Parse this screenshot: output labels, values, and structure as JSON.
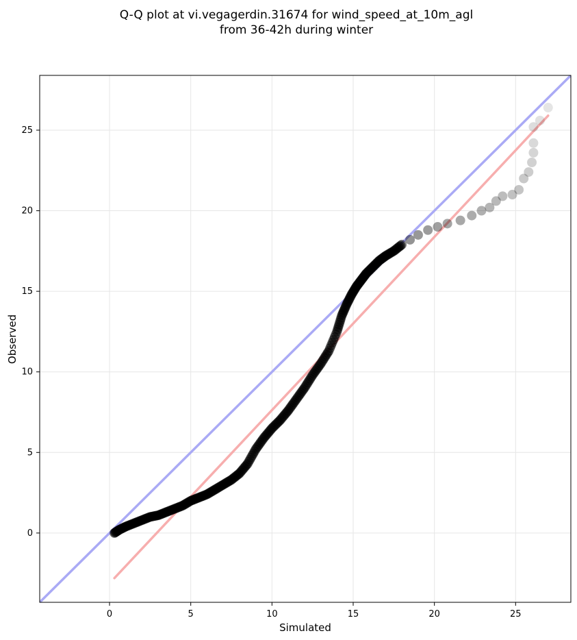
{
  "chart_data": {
    "type": "scatter",
    "title_line1": "Q-Q plot at vi.vegagerdin.31674 for wind_speed_at_10m_agl",
    "title_line2": "from 36-42h during winter",
    "xlabel": "Simulated",
    "ylabel": "Observed",
    "xlim": [
      -4.3,
      28.4
    ],
    "ylim": [
      -4.3,
      28.4
    ],
    "xticks": [
      0,
      5,
      10,
      15,
      20,
      25
    ],
    "yticks": [
      0,
      5,
      10,
      15,
      20,
      25
    ],
    "grid": true,
    "colors": {
      "points": "#000000",
      "identity_line": "#aaaaf5",
      "fit_line": "#f7aaaa",
      "grid": "#e6e6e6"
    },
    "identity_line": {
      "x": [
        -4.3,
        28.4
      ],
      "y": [
        -4.3,
        28.4
      ]
    },
    "fit_line": {
      "x": [
        0.3,
        27.0
      ],
      "y": [
        -2.8,
        25.9
      ]
    },
    "quantile_curve": {
      "x": [
        0.3,
        0.6,
        1.0,
        1.5,
        2.0,
        2.5,
        3.0,
        3.5,
        4.0,
        4.5,
        5.0,
        5.5,
        6.0,
        6.5,
        7.0,
        7.5,
        8.0,
        8.5,
        9.0,
        9.5,
        10.0,
        10.5,
        11.0,
        11.5,
        12.0,
        12.5,
        13.0,
        13.5,
        14.0,
        14.3,
        14.6,
        14.9,
        15.2,
        15.5,
        15.8,
        16.2,
        16.6,
        17.0,
        17.5,
        18.0
      ],
      "y": [
        0.0,
        0.2,
        0.4,
        0.6,
        0.8,
        1.0,
        1.1,
        1.3,
        1.5,
        1.7,
        2.0,
        2.2,
        2.4,
        2.7,
        3.0,
        3.3,
        3.7,
        4.3,
        5.2,
        5.9,
        6.5,
        7.0,
        7.6,
        8.3,
        9.0,
        9.8,
        10.5,
        11.3,
        12.5,
        13.5,
        14.2,
        14.8,
        15.3,
        15.7,
        16.1,
        16.5,
        16.9,
        17.2,
        17.5,
        17.9
      ]
    },
    "tail_points": [
      {
        "x": 18.5,
        "y": 18.2
      },
      {
        "x": 19.0,
        "y": 18.5
      },
      {
        "x": 19.6,
        "y": 18.8
      },
      {
        "x": 20.2,
        "y": 19.0
      },
      {
        "x": 20.8,
        "y": 19.2
      },
      {
        "x": 21.6,
        "y": 19.4
      },
      {
        "x": 22.3,
        "y": 19.7
      },
      {
        "x": 22.9,
        "y": 20.0
      },
      {
        "x": 23.4,
        "y": 20.2
      },
      {
        "x": 23.8,
        "y": 20.6
      },
      {
        "x": 24.2,
        "y": 20.9
      },
      {
        "x": 24.8,
        "y": 21.0
      },
      {
        "x": 25.2,
        "y": 21.3
      },
      {
        "x": 25.5,
        "y": 22.0
      },
      {
        "x": 25.8,
        "y": 22.4
      },
      {
        "x": 26.0,
        "y": 23.0
      },
      {
        "x": 26.1,
        "y": 23.6
      },
      {
        "x": 26.1,
        "y": 24.2
      },
      {
        "x": 26.1,
        "y": 25.2
      },
      {
        "x": 26.5,
        "y": 25.6
      },
      {
        "x": 27.0,
        "y": 26.4
      }
    ]
  }
}
